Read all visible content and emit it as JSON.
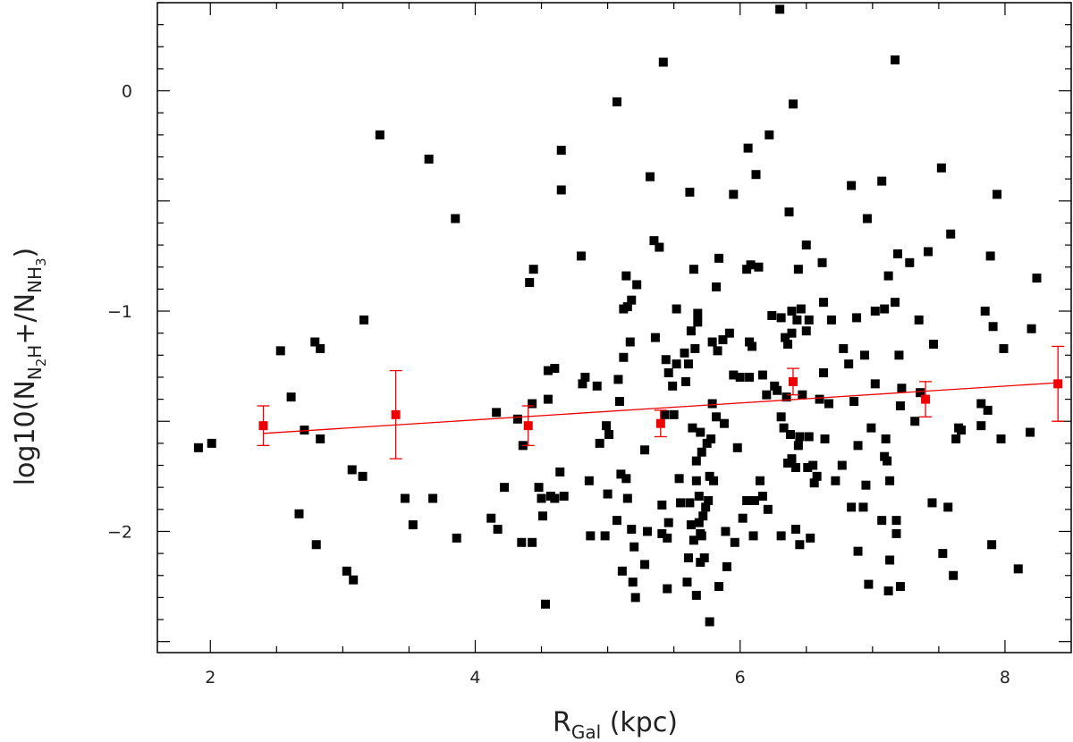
{
  "chart_data": {
    "type": "scatter",
    "xlabel": "R_Gal (kpc)",
    "xlabel_parts": {
      "main": "R",
      "sub": "Gal",
      "unit": " (kpc)"
    },
    "ylabel": "log10(N_N2H+/N_NH3)",
    "ylabel_parts": {
      "prefix": "log10(N",
      "sub1a": "N",
      "sub1b": "2",
      "sub1c": "H",
      "plus": "+/N",
      "sub2a": "NH",
      "sub2b": "3",
      "suffix": ")"
    },
    "xlim": [
      1.6,
      8.5
    ],
    "ylim": [
      -2.55,
      0.4
    ],
    "x_ticks": [
      2,
      4,
      6,
      8
    ],
    "x_tick_labels": [
      "2",
      "4",
      "6",
      "8"
    ],
    "y_ticks": [
      0,
      -1,
      -2
    ],
    "y_tick_labels": [
      "0",
      "−1",
      "−2"
    ],
    "colors": {
      "points": "#000000",
      "binned": "#ee0000",
      "fit": "#ee0000"
    },
    "series": [
      {
        "points": [
          [
            1.91,
            -1.62
          ],
          [
            2.01,
            -1.6
          ],
          [
            2.53,
            -1.18
          ],
          [
            2.61,
            -1.39
          ],
          [
            2.67,
            -1.92
          ],
          [
            2.71,
            -1.54
          ],
          [
            2.79,
            -1.14
          ],
          [
            2.8,
            -2.06
          ],
          [
            2.83,
            -1.17
          ],
          [
            2.83,
            -1.58
          ],
          [
            3.03,
            -2.18
          ],
          [
            3.07,
            -1.72
          ],
          [
            3.08,
            -2.22
          ],
          [
            3.15,
            -1.75
          ],
          [
            3.16,
            -1.04
          ],
          [
            3.28,
            -0.2
          ],
          [
            3.47,
            -1.85
          ],
          [
            3.53,
            -1.97
          ],
          [
            3.65,
            -0.31
          ],
          [
            3.68,
            -1.85
          ],
          [
            3.85,
            -0.58
          ],
          [
            3.86,
            -2.03
          ],
          [
            4.12,
            -1.94
          ],
          [
            4.16,
            -1.46
          ],
          [
            4.17,
            -1.99
          ],
          [
            4.22,
            -1.8
          ],
          [
            4.32,
            -1.49
          ],
          [
            4.35,
            -2.05
          ],
          [
            4.36,
            -1.61
          ],
          [
            4.41,
            -0.87
          ],
          [
            4.43,
            -1.42
          ],
          [
            4.43,
            -2.05
          ],
          [
            4.44,
            -0.81
          ],
          [
            4.48,
            -1.8
          ],
          [
            4.5,
            -1.85
          ],
          [
            4.51,
            -1.93
          ],
          [
            4.53,
            -2.33
          ],
          [
            4.55,
            -1.27
          ],
          [
            4.55,
            -1.4
          ],
          [
            4.57,
            -1.84
          ],
          [
            4.6,
            -1.26
          ],
          [
            4.6,
            -1.85
          ],
          [
            4.64,
            -1.73
          ],
          [
            4.65,
            -0.27
          ],
          [
            4.65,
            -0.45
          ],
          [
            4.67,
            -1.84
          ],
          [
            4.8,
            -0.75
          ],
          [
            4.81,
            -1.33
          ],
          [
            4.83,
            -1.3
          ],
          [
            4.86,
            -1.77
          ],
          [
            4.87,
            -2.02
          ],
          [
            4.92,
            -1.34
          ],
          [
            4.94,
            -1.6
          ],
          [
            4.98,
            -2.02
          ],
          [
            4.99,
            -1.52
          ],
          [
            5.0,
            -1.83
          ],
          [
            5.01,
            -1.56
          ],
          [
            5.07,
            -1.95
          ],
          [
            5.07,
            -0.05
          ],
          [
            5.08,
            -1.31
          ],
          [
            5.09,
            -1.41
          ],
          [
            5.1,
            -1.74
          ],
          [
            5.11,
            -2.18
          ],
          [
            5.12,
            -1.21
          ],
          [
            5.12,
            -0.99
          ],
          [
            5.14,
            -1.76
          ],
          [
            5.14,
            -0.84
          ],
          [
            5.15,
            -1.85
          ],
          [
            5.15,
            -0.98
          ],
          [
            5.17,
            -1.14
          ],
          [
            5.18,
            -1.99
          ],
          [
            5.18,
            -0.95
          ],
          [
            5.19,
            -2.23
          ],
          [
            5.2,
            -2.07
          ],
          [
            5.21,
            -2.3
          ],
          [
            5.22,
            -0.88
          ],
          [
            5.28,
            -1.63
          ],
          [
            5.28,
            -2.15
          ],
          [
            5.3,
            -2.0
          ],
          [
            5.32,
            -0.39
          ],
          [
            5.35,
            -0.68
          ],
          [
            5.36,
            -1.12
          ],
          [
            5.39,
            -0.71
          ],
          [
            5.41,
            -1.88
          ],
          [
            5.41,
            -2.01
          ],
          [
            5.42,
            0.13
          ],
          [
            5.43,
            -1.47
          ],
          [
            5.44,
            -1.22
          ],
          [
            5.45,
            -2.03
          ],
          [
            5.45,
            -2.26
          ],
          [
            5.46,
            -1.96
          ],
          [
            5.46,
            -1.28
          ],
          [
            5.49,
            -1.34
          ],
          [
            5.5,
            -1.47
          ],
          [
            5.52,
            -0.99
          ],
          [
            5.52,
            -1.24
          ],
          [
            5.54,
            -1.76
          ],
          [
            5.55,
            -1.87
          ],
          [
            5.58,
            -1.19
          ],
          [
            5.59,
            -1.32
          ],
          [
            5.6,
            -2.23
          ],
          [
            5.61,
            -1.24
          ],
          [
            5.61,
            -2.12
          ],
          [
            5.62,
            -0.46
          ],
          [
            5.62,
            -1.87
          ],
          [
            5.63,
            -1.97
          ],
          [
            5.63,
            -1.09
          ],
          [
            5.64,
            -1.53
          ],
          [
            5.65,
            -2.04
          ],
          [
            5.65,
            -0.81
          ],
          [
            5.66,
            -1.17
          ],
          [
            5.67,
            -2.29
          ],
          [
            5.67,
            -1.77
          ],
          [
            5.67,
            -1.68
          ],
          [
            5.68,
            -1.01
          ],
          [
            5.68,
            -1.05
          ],
          [
            5.69,
            -1.96
          ],
          [
            5.69,
            -1.84
          ],
          [
            5.7,
            -2.14
          ],
          [
            5.7,
            -1.55
          ],
          [
            5.7,
            -2.01
          ],
          [
            5.71,
            -2.02
          ],
          [
            5.71,
            -1.64
          ],
          [
            5.72,
            -1.93
          ],
          [
            5.73,
            -2.12
          ],
          [
            5.74,
            -1.89
          ],
          [
            5.75,
            -1.6
          ],
          [
            5.76,
            -1.86
          ],
          [
            5.77,
            -2.41
          ],
          [
            5.77,
            -1.75
          ],
          [
            5.78,
            -1.58
          ],
          [
            5.79,
            -1.42
          ],
          [
            5.79,
            -1.14
          ],
          [
            5.8,
            -1.77
          ],
          [
            5.82,
            -1.48
          ],
          [
            5.82,
            -0.89
          ],
          [
            5.83,
            -1.18
          ],
          [
            5.84,
            -0.76
          ],
          [
            5.84,
            -2.25
          ],
          [
            5.87,
            -1.13
          ],
          [
            5.88,
            -1.51
          ],
          [
            5.89,
            -2.0
          ],
          [
            5.9,
            -2.16
          ],
          [
            5.92,
            -1.1
          ],
          [
            5.95,
            -1.29
          ],
          [
            5.95,
            -0.47
          ],
          [
            5.96,
            -2.05
          ],
          [
            5.98,
            -1.62
          ],
          [
            6.0,
            -1.3
          ],
          [
            6.02,
            -1.94
          ],
          [
            6.05,
            -0.81
          ],
          [
            6.05,
            -1.86
          ],
          [
            6.06,
            -0.26
          ],
          [
            6.07,
            -1.3
          ],
          [
            6.07,
            -1.14
          ],
          [
            6.08,
            -0.79
          ],
          [
            6.09,
            -1.16
          ],
          [
            6.1,
            -2.02
          ],
          [
            6.11,
            -1.86
          ],
          [
            6.12,
            -0.38
          ],
          [
            6.14,
            -0.8
          ],
          [
            6.15,
            -1.77
          ],
          [
            6.17,
            -1.29
          ],
          [
            6.17,
            -1.84
          ],
          [
            6.2,
            -1.38
          ],
          [
            6.21,
            -1.9
          ],
          [
            6.22,
            -0.2
          ],
          [
            6.24,
            -1.02
          ],
          [
            6.26,
            -1.34
          ],
          [
            6.28,
            -1.36
          ],
          [
            6.3,
            0.37
          ],
          [
            6.31,
            -1.03
          ],
          [
            6.31,
            -1.48
          ],
          [
            6.31,
            -2.02
          ],
          [
            6.33,
            -1.53
          ],
          [
            6.34,
            -1.12
          ],
          [
            6.35,
            -1.39
          ],
          [
            6.36,
            -1.69
          ],
          [
            6.36,
            -1.15
          ],
          [
            6.37,
            -0.55
          ],
          [
            6.38,
            -1.56
          ],
          [
            6.39,
            -1.67
          ],
          [
            6.39,
            -1.0
          ],
          [
            6.39,
            -1.1
          ],
          [
            6.4,
            -0.06
          ],
          [
            6.42,
            -1.99
          ],
          [
            6.42,
            -1.71
          ],
          [
            6.43,
            -1.04
          ],
          [
            6.44,
            -1.61
          ],
          [
            6.44,
            -0.81
          ],
          [
            6.45,
            -1.57
          ],
          [
            6.45,
            -2.06
          ],
          [
            6.46,
            -0.99
          ],
          [
            6.47,
            -1.38
          ],
          [
            6.5,
            -1.09
          ],
          [
            6.5,
            -0.7
          ],
          [
            6.51,
            -1.71
          ],
          [
            6.52,
            -1.04
          ],
          [
            6.52,
            -1.57
          ],
          [
            6.53,
            -2.03
          ],
          [
            6.55,
            -1.7
          ],
          [
            6.56,
            -1.78
          ],
          [
            6.58,
            -1.75
          ],
          [
            6.6,
            -1.4
          ],
          [
            6.62,
            -0.78
          ],
          [
            6.63,
            -1.28
          ],
          [
            6.63,
            -0.96
          ],
          [
            6.64,
            -1.58
          ],
          [
            6.67,
            -1.42
          ],
          [
            6.69,
            -1.04
          ],
          [
            6.72,
            -1.77
          ],
          [
            6.77,
            -1.7
          ],
          [
            6.78,
            -1.17
          ],
          [
            6.82,
            -1.24
          ],
          [
            6.84,
            -1.89
          ],
          [
            6.84,
            -0.43
          ],
          [
            6.86,
            -1.41
          ],
          [
            6.88,
            -1.03
          ],
          [
            6.89,
            -2.09
          ],
          [
            6.89,
            -1.61
          ],
          [
            6.93,
            -1.89
          ],
          [
            6.94,
            -1.2
          ],
          [
            6.95,
            -1.79
          ],
          [
            6.96,
            -0.58
          ],
          [
            6.97,
            -2.24
          ],
          [
            6.99,
            -1.53
          ],
          [
            7.02,
            -1.0
          ],
          [
            7.02,
            -1.33
          ],
          [
            7.07,
            -1.95
          ],
          [
            7.07,
            -0.41
          ],
          [
            7.09,
            -1.66
          ],
          [
            7.09,
            -0.99
          ],
          [
            7.1,
            -1.58
          ],
          [
            7.11,
            -1.68
          ],
          [
            7.12,
            -0.84
          ],
          [
            7.12,
            -2.27
          ],
          [
            7.13,
            -2.13
          ],
          [
            7.13,
            -1.77
          ],
          [
            7.17,
            -0.96
          ],
          [
            7.17,
            0.14
          ],
          [
            7.18,
            -1.95
          ],
          [
            7.18,
            -2.01
          ],
          [
            7.19,
            -0.74
          ],
          [
            7.2,
            -1.2
          ],
          [
            7.21,
            -2.25
          ],
          [
            7.21,
            -1.43
          ],
          [
            7.22,
            -1.35
          ],
          [
            7.28,
            -0.78
          ],
          [
            7.32,
            -1.5
          ],
          [
            7.35,
            -1.04
          ],
          [
            7.36,
            -1.37
          ],
          [
            7.42,
            -0.73
          ],
          [
            7.45,
            -1.87
          ],
          [
            7.46,
            -1.15
          ],
          [
            7.52,
            -0.35
          ],
          [
            7.53,
            -2.1
          ],
          [
            7.57,
            -1.89
          ],
          [
            7.59,
            -0.65
          ],
          [
            7.61,
            -2.2
          ],
          [
            7.63,
            -1.58
          ],
          [
            7.65,
            -1.53
          ],
          [
            7.67,
            -1.54
          ],
          [
            7.82,
            -1.42
          ],
          [
            7.82,
            -1.52
          ],
          [
            7.85,
            -1.0
          ],
          [
            7.87,
            -1.45
          ],
          [
            7.89,
            -0.75
          ],
          [
            7.9,
            -2.06
          ],
          [
            7.91,
            -1.07
          ],
          [
            7.94,
            -0.47
          ],
          [
            7.97,
            -1.58
          ],
          [
            7.99,
            -1.17
          ],
          [
            8.1,
            -2.17
          ],
          [
            8.19,
            -1.55
          ],
          [
            8.2,
            -1.08
          ],
          [
            8.24,
            -0.85
          ]
        ]
      },
      {
        "binned": [
          {
            "x": 2.4,
            "y": -1.52,
            "err": 0.09
          },
          {
            "x": 3.4,
            "y": -1.47,
            "err": 0.2
          },
          {
            "x": 4.4,
            "y": -1.52,
            "err": 0.09
          },
          {
            "x": 5.4,
            "y": -1.51,
            "err": 0.06
          },
          {
            "x": 6.4,
            "y": -1.32,
            "err": 0.06
          },
          {
            "x": 7.4,
            "y": -1.4,
            "err": 0.08
          },
          {
            "x": 8.4,
            "y": -1.33,
            "err": 0.17
          }
        ]
      },
      {
        "fit": {
          "x": [
            2.4,
            8.4
          ],
          "y": [
            -1.555,
            -1.325
          ]
        }
      }
    ]
  }
}
